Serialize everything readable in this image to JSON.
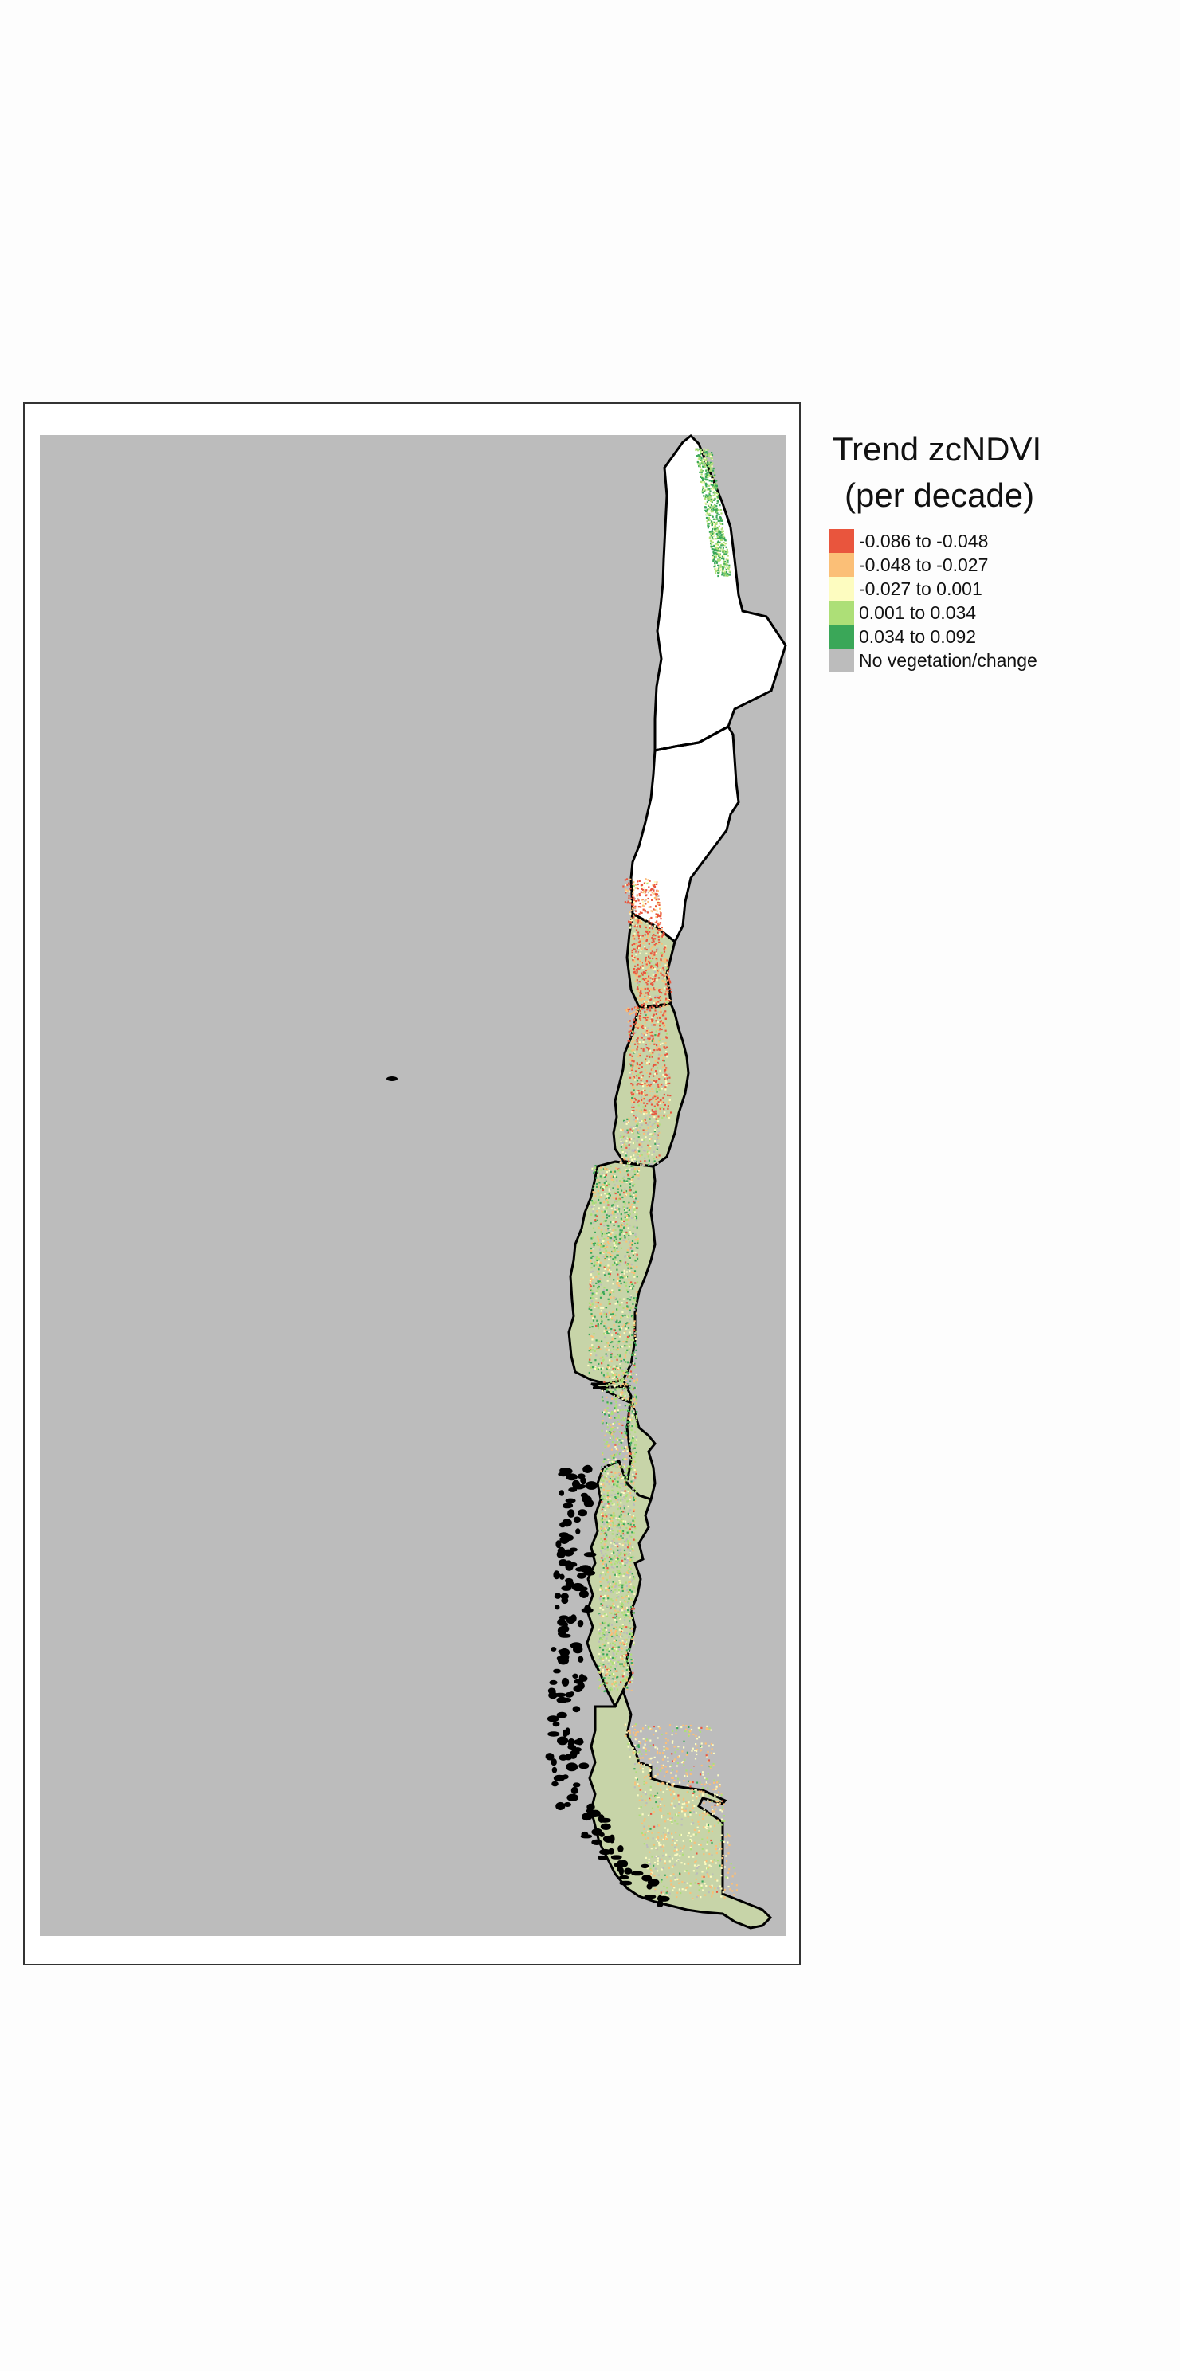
{
  "legend": {
    "title_line1": "Trend zcNDVI",
    "title_line2": "(per decade)",
    "items": [
      {
        "label": "-0.086 to -0.048",
        "color": "#e9553d"
      },
      {
        "label": "-0.048 to -0.027",
        "color": "#fbbf77"
      },
      {
        "label": "-0.027 to 0.001",
        "color": "#fdfcc0"
      },
      {
        "label": "0.001 to 0.034",
        "color": "#addf77"
      },
      {
        "label": "0.034 to 0.092",
        "color": "#3aa758"
      },
      {
        "label": "No vegetation/change",
        "color": "#bcbcbc"
      }
    ]
  },
  "map": {
    "background_color": "#bcbcbc",
    "land_color": "#c7d4a8",
    "desert_color": "#ffffff",
    "border_color": "#000000"
  }
}
